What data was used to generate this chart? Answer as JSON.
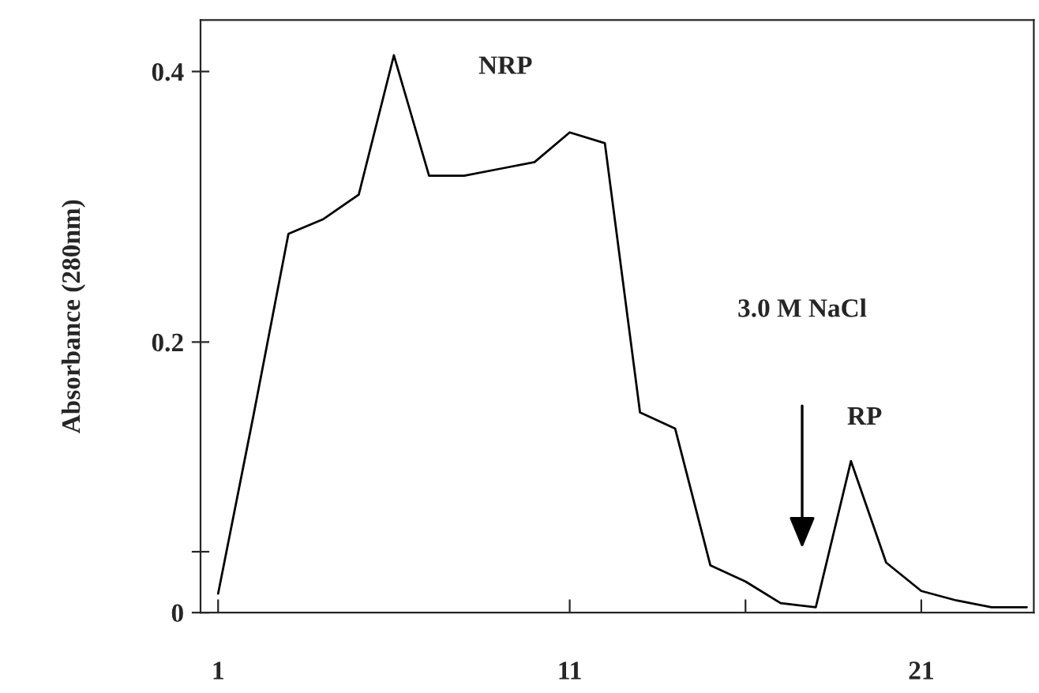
{
  "chart_data": {
    "type": "line",
    "ylabel": "Absorbance (280nm)",
    "x": [
      1,
      2,
      3,
      4,
      5,
      6,
      7,
      8,
      9,
      10,
      11,
      12,
      13,
      14,
      15,
      16,
      17,
      18,
      19,
      20,
      21,
      22,
      23,
      24
    ],
    "series": [
      {
        "color": "#000000",
        "values": [
          0.014,
          0.145,
          0.28,
          0.291,
          0.309,
          0.412,
          0.323,
          0.323,
          0.328,
          0.333,
          0.355,
          0.347,
          0.148,
          0.136,
          0.035,
          0.023,
          0.007,
          0.004,
          0.112,
          0.037,
          0.016,
          0.009,
          0.004,
          0.004
        ]
      }
    ],
    "xlim": [
      0.5,
      24.2
    ],
    "xticks": [
      1,
      11,
      {
        "value": 16,
        "label": null
      },
      21
    ],
    "ylim": [
      0,
      0.438
    ],
    "yticks": [
      0,
      {
        "value": 0.045,
        "label": null
      },
      0.2,
      0.4
    ],
    "annotations": [
      "NRP",
      "RP",
      "3.0 M NaCl"
    ],
    "grid": false,
    "legend": false,
    "marker": "none",
    "line_style": "solid"
  }
}
